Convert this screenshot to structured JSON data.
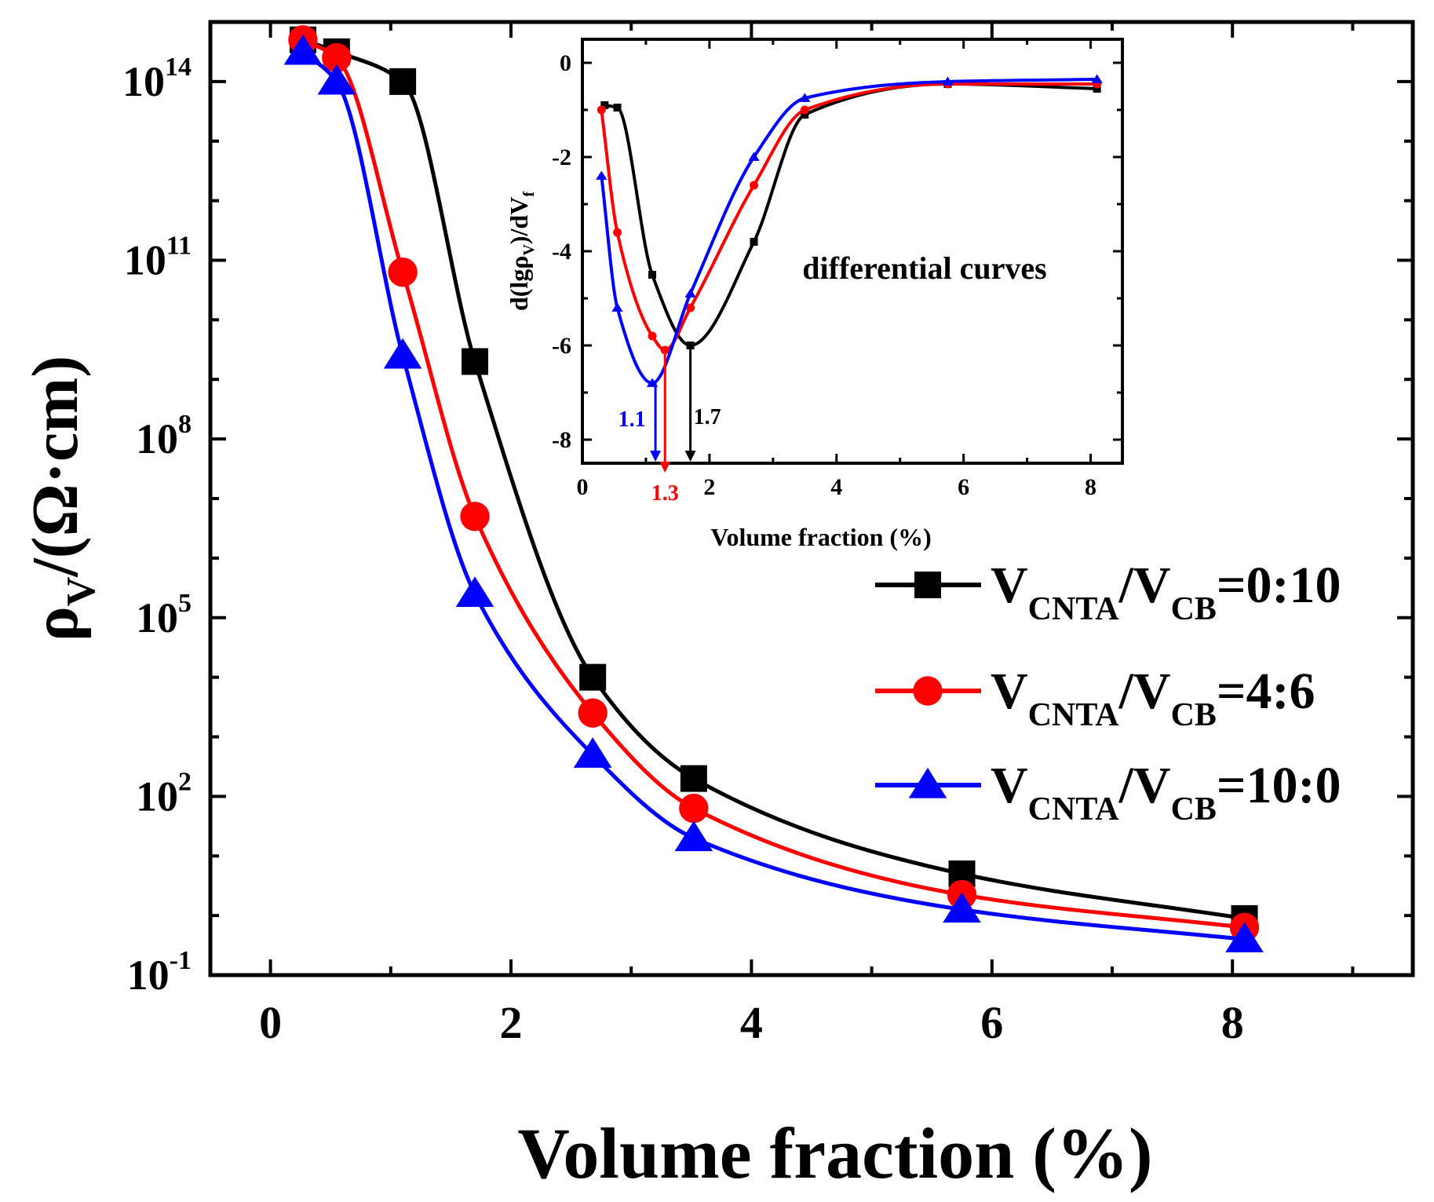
{
  "chart_data": [
    {
      "type": "line",
      "role": "main",
      "xlabel": "Volume fraction (%)",
      "ylabel_parts": [
        "ρ",
        "V",
        "/(Ω·cm)"
      ],
      "xlim": [
        -0.5,
        9.5
      ],
      "ylim_log10": [
        -1,
        15
      ],
      "yscale": "log",
      "x_ticks": [
        "0",
        "2",
        "4",
        "6",
        "8"
      ],
      "x_tick_values": [
        0,
        2,
        4,
        6,
        8
      ],
      "y_ticks": [
        {
          "base": "10",
          "exp": "-1",
          "log": -1
        },
        {
          "base": "10",
          "exp": "2",
          "log": 2
        },
        {
          "base": "10",
          "exp": "5",
          "log": 5
        },
        {
          "base": "10",
          "exp": "8",
          "log": 8
        },
        {
          "base": "10",
          "exp": "11",
          "log": 11
        },
        {
          "base": "10",
          "exp": "14",
          "log": 14
        }
      ],
      "series": [
        {
          "name": "V_CNTA/V_CB=0:10",
          "legend": {
            "v1": "V",
            "s1": "CNTA",
            "slash": "/V",
            "s2": "CB",
            "ratio": "=0:10"
          },
          "color": "#000000",
          "marker": "square",
          "x": [
            0.27,
            0.55,
            1.1,
            1.7,
            2.68,
            3.52,
            5.75,
            8.1
          ],
          "log10_y": [
            14.7,
            14.5,
            14.0,
            9.3,
            4.0,
            2.3,
            0.7,
            -0.05
          ]
        },
        {
          "name": "V_CNTA/V_CB=4:6",
          "legend": {
            "v1": "V",
            "s1": "CNTA",
            "slash": "/V",
            "s2": "CB",
            "ratio": "=4:6"
          },
          "color": "#ff0000",
          "marker": "circle",
          "x": [
            0.27,
            0.55,
            1.1,
            1.7,
            2.68,
            3.52,
            5.75,
            8.1
          ],
          "log10_y": [
            14.7,
            14.4,
            10.8,
            6.7,
            3.4,
            1.8,
            0.35,
            -0.2
          ]
        },
        {
          "name": "V_CNTA/V_CB=10:0",
          "legend": {
            "v1": "V",
            "s1": "CNTA",
            "slash": "/V",
            "s2": "CB",
            "ratio": "=10:0"
          },
          "color": "#0000ff",
          "marker": "triangle",
          "x": [
            0.27,
            0.55,
            1.1,
            1.7,
            2.68,
            3.52,
            5.75,
            8.1
          ],
          "log10_y": [
            14.5,
            14.0,
            9.4,
            5.4,
            2.7,
            1.3,
            0.1,
            -0.4
          ]
        }
      ]
    },
    {
      "type": "line",
      "role": "inset",
      "xlabel": "Volume fraction (%)",
      "ylabel_parts": [
        "d(lgρ",
        "V",
        ")/dV",
        "f"
      ],
      "annotation": "differential curves",
      "xlim": [
        0,
        8.5
      ],
      "ylim": [
        -8.5,
        0.5
      ],
      "x_ticks": [
        "0",
        "2",
        "4",
        "6",
        "8"
      ],
      "x_tick_values": [
        0,
        2,
        4,
        6,
        8
      ],
      "y_ticks": [
        "0",
        "-2",
        "-4",
        "-6",
        "-8"
      ],
      "y_tick_values": [
        0,
        -2,
        -4,
        -6,
        -8
      ],
      "minima_labels": [
        {
          "label": "1.1",
          "x": 1.15,
          "y": -6.8,
          "color": "#0000ff"
        },
        {
          "label": "1.3",
          "x": 1.3,
          "y": -6.1,
          "color": "#ff0000"
        },
        {
          "label": "1.7",
          "x": 1.7,
          "y": -6.0,
          "color": "#000000"
        }
      ],
      "series": [
        {
          "name": "V_CNTA/V_CB=0:10",
          "color": "#000000",
          "marker": "square",
          "x": [
            0.35,
            0.55,
            1.1,
            1.7,
            2.7,
            3.5,
            5.75,
            8.1
          ],
          "y": [
            -0.9,
            -0.95,
            -4.5,
            -6.0,
            -3.8,
            -1.1,
            -0.45,
            -0.55
          ]
        },
        {
          "name": "V_CNTA/V_CB=4:6",
          "color": "#ff0000",
          "marker": "circle",
          "x": [
            0.3,
            0.55,
            1.1,
            1.3,
            1.7,
            2.7,
            3.5,
            5.75,
            8.1
          ],
          "y": [
            -1.0,
            -3.6,
            -5.8,
            -6.1,
            -5.2,
            -2.6,
            -1.0,
            -0.45,
            -0.45
          ]
        },
        {
          "name": "V_CNTA/V_CB=10:0",
          "color": "#0000ff",
          "marker": "triangle",
          "x": [
            0.3,
            0.55,
            1.1,
            1.7,
            2.7,
            3.5,
            5.75,
            8.1
          ],
          "y": [
            -2.4,
            -5.2,
            -6.8,
            -4.9,
            -2.0,
            -0.75,
            -0.4,
            -0.35
          ]
        }
      ]
    }
  ]
}
